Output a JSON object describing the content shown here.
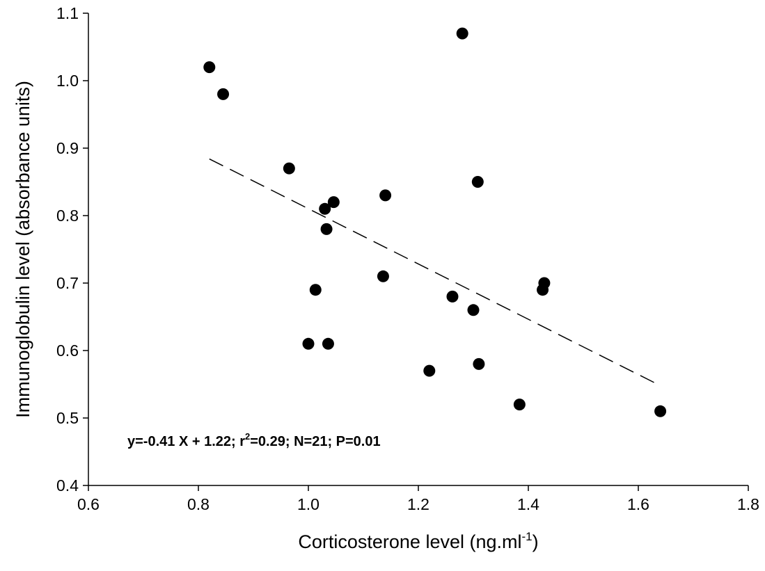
{
  "chart_data": {
    "type": "scatter",
    "xlabel": {
      "main": "Corticosterone level (ng.ml",
      "sup": "-1",
      "close": ")"
    },
    "ylabel": "Immunoglobulin level (absorbance units)",
    "xlim": [
      0.6,
      1.8
    ],
    "ylim": [
      0.4,
      1.1
    ],
    "x_ticks": [
      "0.6",
      "0.8",
      "1.0",
      "1.2",
      "1.4",
      "1.6",
      "1.8"
    ],
    "y_ticks": [
      "0.4",
      "0.5",
      "0.6",
      "0.7",
      "0.8",
      "0.9",
      "1.0",
      "1.1"
    ],
    "grid": false,
    "marker_color": "#000000",
    "points": [
      {
        "x": 0.82,
        "y": 1.02
      },
      {
        "x": 0.845,
        "y": 0.98
      },
      {
        "x": 0.965,
        "y": 0.87
      },
      {
        "x": 1.0,
        "y": 0.61
      },
      {
        "x": 1.013,
        "y": 0.69
      },
      {
        "x": 1.03,
        "y": 0.81
      },
      {
        "x": 1.033,
        "y": 0.78
      },
      {
        "x": 1.036,
        "y": 0.61
      },
      {
        "x": 1.046,
        "y": 0.82
      },
      {
        "x": 1.136,
        "y": 0.71
      },
      {
        "x": 1.14,
        "y": 0.83
      },
      {
        "x": 1.22,
        "y": 0.57
      },
      {
        "x": 1.262,
        "y": 0.68
      },
      {
        "x": 1.28,
        "y": 1.07
      },
      {
        "x": 1.3,
        "y": 0.66
      },
      {
        "x": 1.308,
        "y": 0.85
      },
      {
        "x": 1.31,
        "y": 0.58
      },
      {
        "x": 1.384,
        "y": 0.52
      },
      {
        "x": 1.426,
        "y": 0.69
      },
      {
        "x": 1.429,
        "y": 0.7
      },
      {
        "x": 1.64,
        "y": 0.51
      }
    ],
    "trendline": {
      "x1": 0.82,
      "y1": 0.884,
      "x2": 1.64,
      "y2": 0.548
    },
    "annotation": {
      "part1": "y=-0.41 X + 1.22; r",
      "sup": "2",
      "part2": "=0.29; N=21; P=0.01"
    }
  }
}
